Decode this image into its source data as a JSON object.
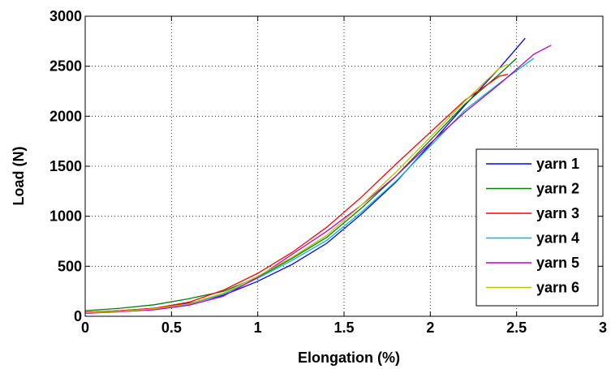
{
  "chart_data": {
    "type": "line",
    "title": "",
    "xlabel": "Elongation (%)",
    "ylabel": "Load (N)",
    "xlim": [
      0,
      3
    ],
    "ylim": [
      0,
      3000
    ],
    "xticks": [
      0,
      0.5,
      1,
      1.5,
      2,
      2.5,
      3
    ],
    "xtick_labels": [
      "0",
      "0.5",
      "1",
      "1.5",
      "2",
      "2.5",
      "3"
    ],
    "yticks": [
      0,
      500,
      1000,
      1500,
      2000,
      2500,
      3000
    ],
    "ytick_labels": [
      "0",
      "500",
      "1000",
      "1500",
      "2000",
      "2500",
      "3000"
    ],
    "grid": true,
    "legend_position": "bottom-right",
    "series": [
      {
        "name": "yarn 1",
        "color": "#0000ff",
        "x": [
          0,
          0.2,
          0.4,
          0.6,
          0.8,
          1.0,
          1.2,
          1.4,
          1.6,
          1.8,
          2.0,
          2.2,
          2.4,
          2.55
        ],
        "y": [
          40,
          55,
          80,
          130,
          210,
          350,
          520,
          730,
          1020,
          1340,
          1720,
          2110,
          2480,
          2780
        ]
      },
      {
        "name": "yarn 2",
        "color": "#008000",
        "x": [
          0,
          0.2,
          0.4,
          0.6,
          0.8,
          1.0,
          1.2,
          1.4,
          1.6,
          1.8,
          2.0,
          2.2,
          2.4,
          2.5
        ],
        "y": [
          55,
          80,
          115,
          175,
          250,
          390,
          580,
          790,
          1080,
          1400,
          1760,
          2120,
          2420,
          2580
        ]
      },
      {
        "name": "yarn 3",
        "color": "#ff0000",
        "x": [
          0,
          0.2,
          0.4,
          0.6,
          0.8,
          1.0,
          1.2,
          1.4,
          1.6,
          1.8,
          2.0,
          2.2,
          2.4,
          2.45
        ],
        "y": [
          40,
          55,
          80,
          140,
          260,
          430,
          640,
          890,
          1190,
          1520,
          1840,
          2160,
          2400,
          2420
        ]
      },
      {
        "name": "yarn 4",
        "color": "#00bfbf",
        "x": [
          0,
          0.2,
          0.4,
          0.6,
          0.8,
          1.0,
          1.2,
          1.4,
          1.6,
          1.8,
          2.0,
          2.2,
          2.4,
          2.6
        ],
        "y": [
          30,
          45,
          70,
          120,
          220,
          380,
          560,
          760,
          1040,
          1350,
          1700,
          2060,
          2330,
          2580
        ]
      },
      {
        "name": "yarn 5",
        "color": "#bf00bf",
        "x": [
          0,
          0.2,
          0.4,
          0.6,
          0.8,
          1.0,
          1.2,
          1.4,
          1.6,
          1.8,
          2.0,
          2.2,
          2.4,
          2.6,
          2.7
        ],
        "y": [
          30,
          45,
          65,
          110,
          200,
          390,
          620,
          850,
          1110,
          1400,
          1730,
          2040,
          2320,
          2620,
          2710
        ]
      },
      {
        "name": "yarn 6",
        "color": "#bfbf00",
        "x": [
          0,
          0.2,
          0.4,
          0.6,
          0.8,
          1.0,
          1.2,
          1.4,
          1.6,
          1.8,
          2.0,
          2.2,
          2.4,
          2.45
        ],
        "y": [
          35,
          50,
          75,
          125,
          230,
          400,
          590,
          810,
          1110,
          1440,
          1790,
          2150,
          2480,
          2520
        ]
      }
    ]
  }
}
